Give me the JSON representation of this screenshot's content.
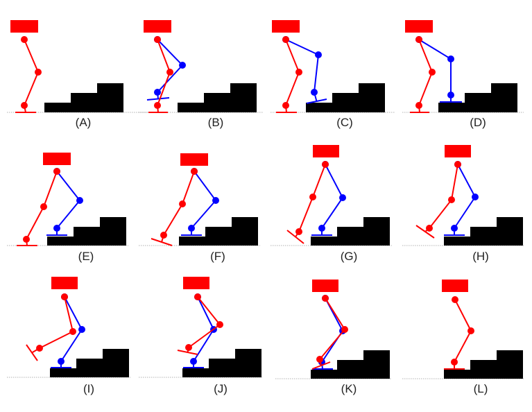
{
  "colors": {
    "left_leg": "#ff0000",
    "right_leg": "#0000ff",
    "stairs": "#000000",
    "ground": "#999999"
  },
  "panels": [
    {
      "label": "(A)"
    },
    {
      "label": "(B)"
    },
    {
      "label": "(C)"
    },
    {
      "label": "(D)"
    },
    {
      "label": "(E)"
    },
    {
      "label": "(F)"
    },
    {
      "label": "(G)"
    },
    {
      "label": "(H)"
    },
    {
      "label": "(I)"
    },
    {
      "label": "(J)"
    },
    {
      "label": "(K)"
    },
    {
      "label": "(L)"
    }
  ]
}
